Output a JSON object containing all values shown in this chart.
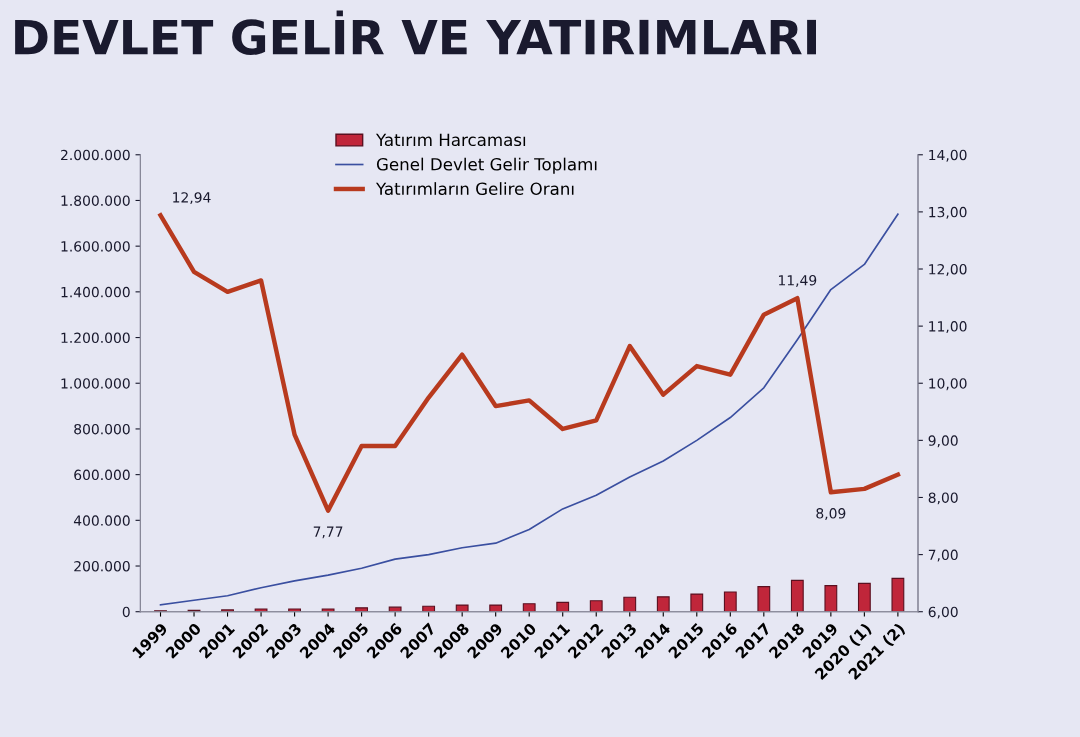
{
  "chart_data": {
    "type": "bar",
    "title": "DEVLET GELİR VE YATIRIMLARI",
    "categories": [
      "1999",
      "2000",
      "2001",
      "2002",
      "2003",
      "2004",
      "2005",
      "2006",
      "2007",
      "2008",
      "2009",
      "2010",
      "2011",
      "2012",
      "2013",
      "2014",
      "2015",
      "2016",
      "2017",
      "2018",
      "2019",
      "2020 (1)",
      "2021 (2)"
    ],
    "series": [
      {
        "name": "Yatırım Harcaması",
        "color": "#c0263a",
        "values": [
          4000,
          6000,
          8000,
          12000,
          12000,
          12000,
          17000,
          20000,
          24000,
          29000,
          29000,
          35000,
          41000,
          48000,
          63000,
          65000,
          77000,
          86000,
          110000,
          137000,
          114000,
          124000,
          146000
        ]
      },
      {
        "name": "Genel Devlet Gelir Toplamı",
        "type": "line",
        "color": "#3a4fa0",
        "values": [
          30000,
          50000,
          70000,
          105000,
          135000,
          160000,
          190000,
          230000,
          250000,
          280000,
          300000,
          360000,
          450000,
          510000,
          590000,
          660000,
          750000,
          850000,
          980000,
          1190000,
          1410000,
          1520000,
          1740000
        ]
      },
      {
        "name": "Yatırımların Gelire Oranı",
        "type": "line",
        "axis": "y2",
        "color": "#b83a1e",
        "values": [
          12.94,
          11.95,
          11.6,
          11.8,
          9.1,
          7.77,
          8.9,
          8.9,
          9.75,
          10.5,
          9.6,
          9.7,
          9.2,
          9.35,
          10.65,
          9.8,
          10.3,
          10.15,
          11.2,
          11.49,
          8.09,
          8.15,
          8.4
        ],
        "value_labels": [
          "12,94",
          null,
          null,
          null,
          null,
          "7,77",
          null,
          null,
          null,
          null,
          null,
          null,
          null,
          null,
          null,
          null,
          null,
          null,
          null,
          "11,49",
          "8,09",
          null,
          null
        ]
      }
    ],
    "ylim": [
      0,
      2000000
    ],
    "yticks": [
      {
        "value": 0,
        "label": "0"
      },
      {
        "value": 200000,
        "label": "200.000"
      },
      {
        "value": 400000,
        "label": "400.000"
      },
      {
        "value": 600000,
        "label": "600.000"
      },
      {
        "value": 800000,
        "label": "800.000"
      },
      {
        "value": 1000000,
        "label": "1.000.000"
      },
      {
        "value": 1200000,
        "label": "1.200.000"
      },
      {
        "value": 1400000,
        "label": "1.400.000"
      },
      {
        "value": 1600000,
        "label": "1.600.000"
      },
      {
        "value": 1800000,
        "label": "1.800.000"
      },
      {
        "value": 2000000,
        "label": "2.000.000"
      }
    ],
    "y2lim": [
      6,
      14
    ],
    "y2ticks": [
      {
        "value": 6,
        "label": "6,00"
      },
      {
        "value": 7,
        "label": "7,00"
      },
      {
        "value": 8,
        "label": "8,00"
      },
      {
        "value": 9,
        "label": "9,00"
      },
      {
        "value": 10,
        "label": "10,00"
      },
      {
        "value": 11,
        "label": "11,00"
      },
      {
        "value": 12,
        "label": "12,00"
      },
      {
        "value": 13,
        "label": "13,00"
      },
      {
        "value": 14,
        "label": "14,00"
      }
    ],
    "legend": "top",
    "grid": false
  }
}
